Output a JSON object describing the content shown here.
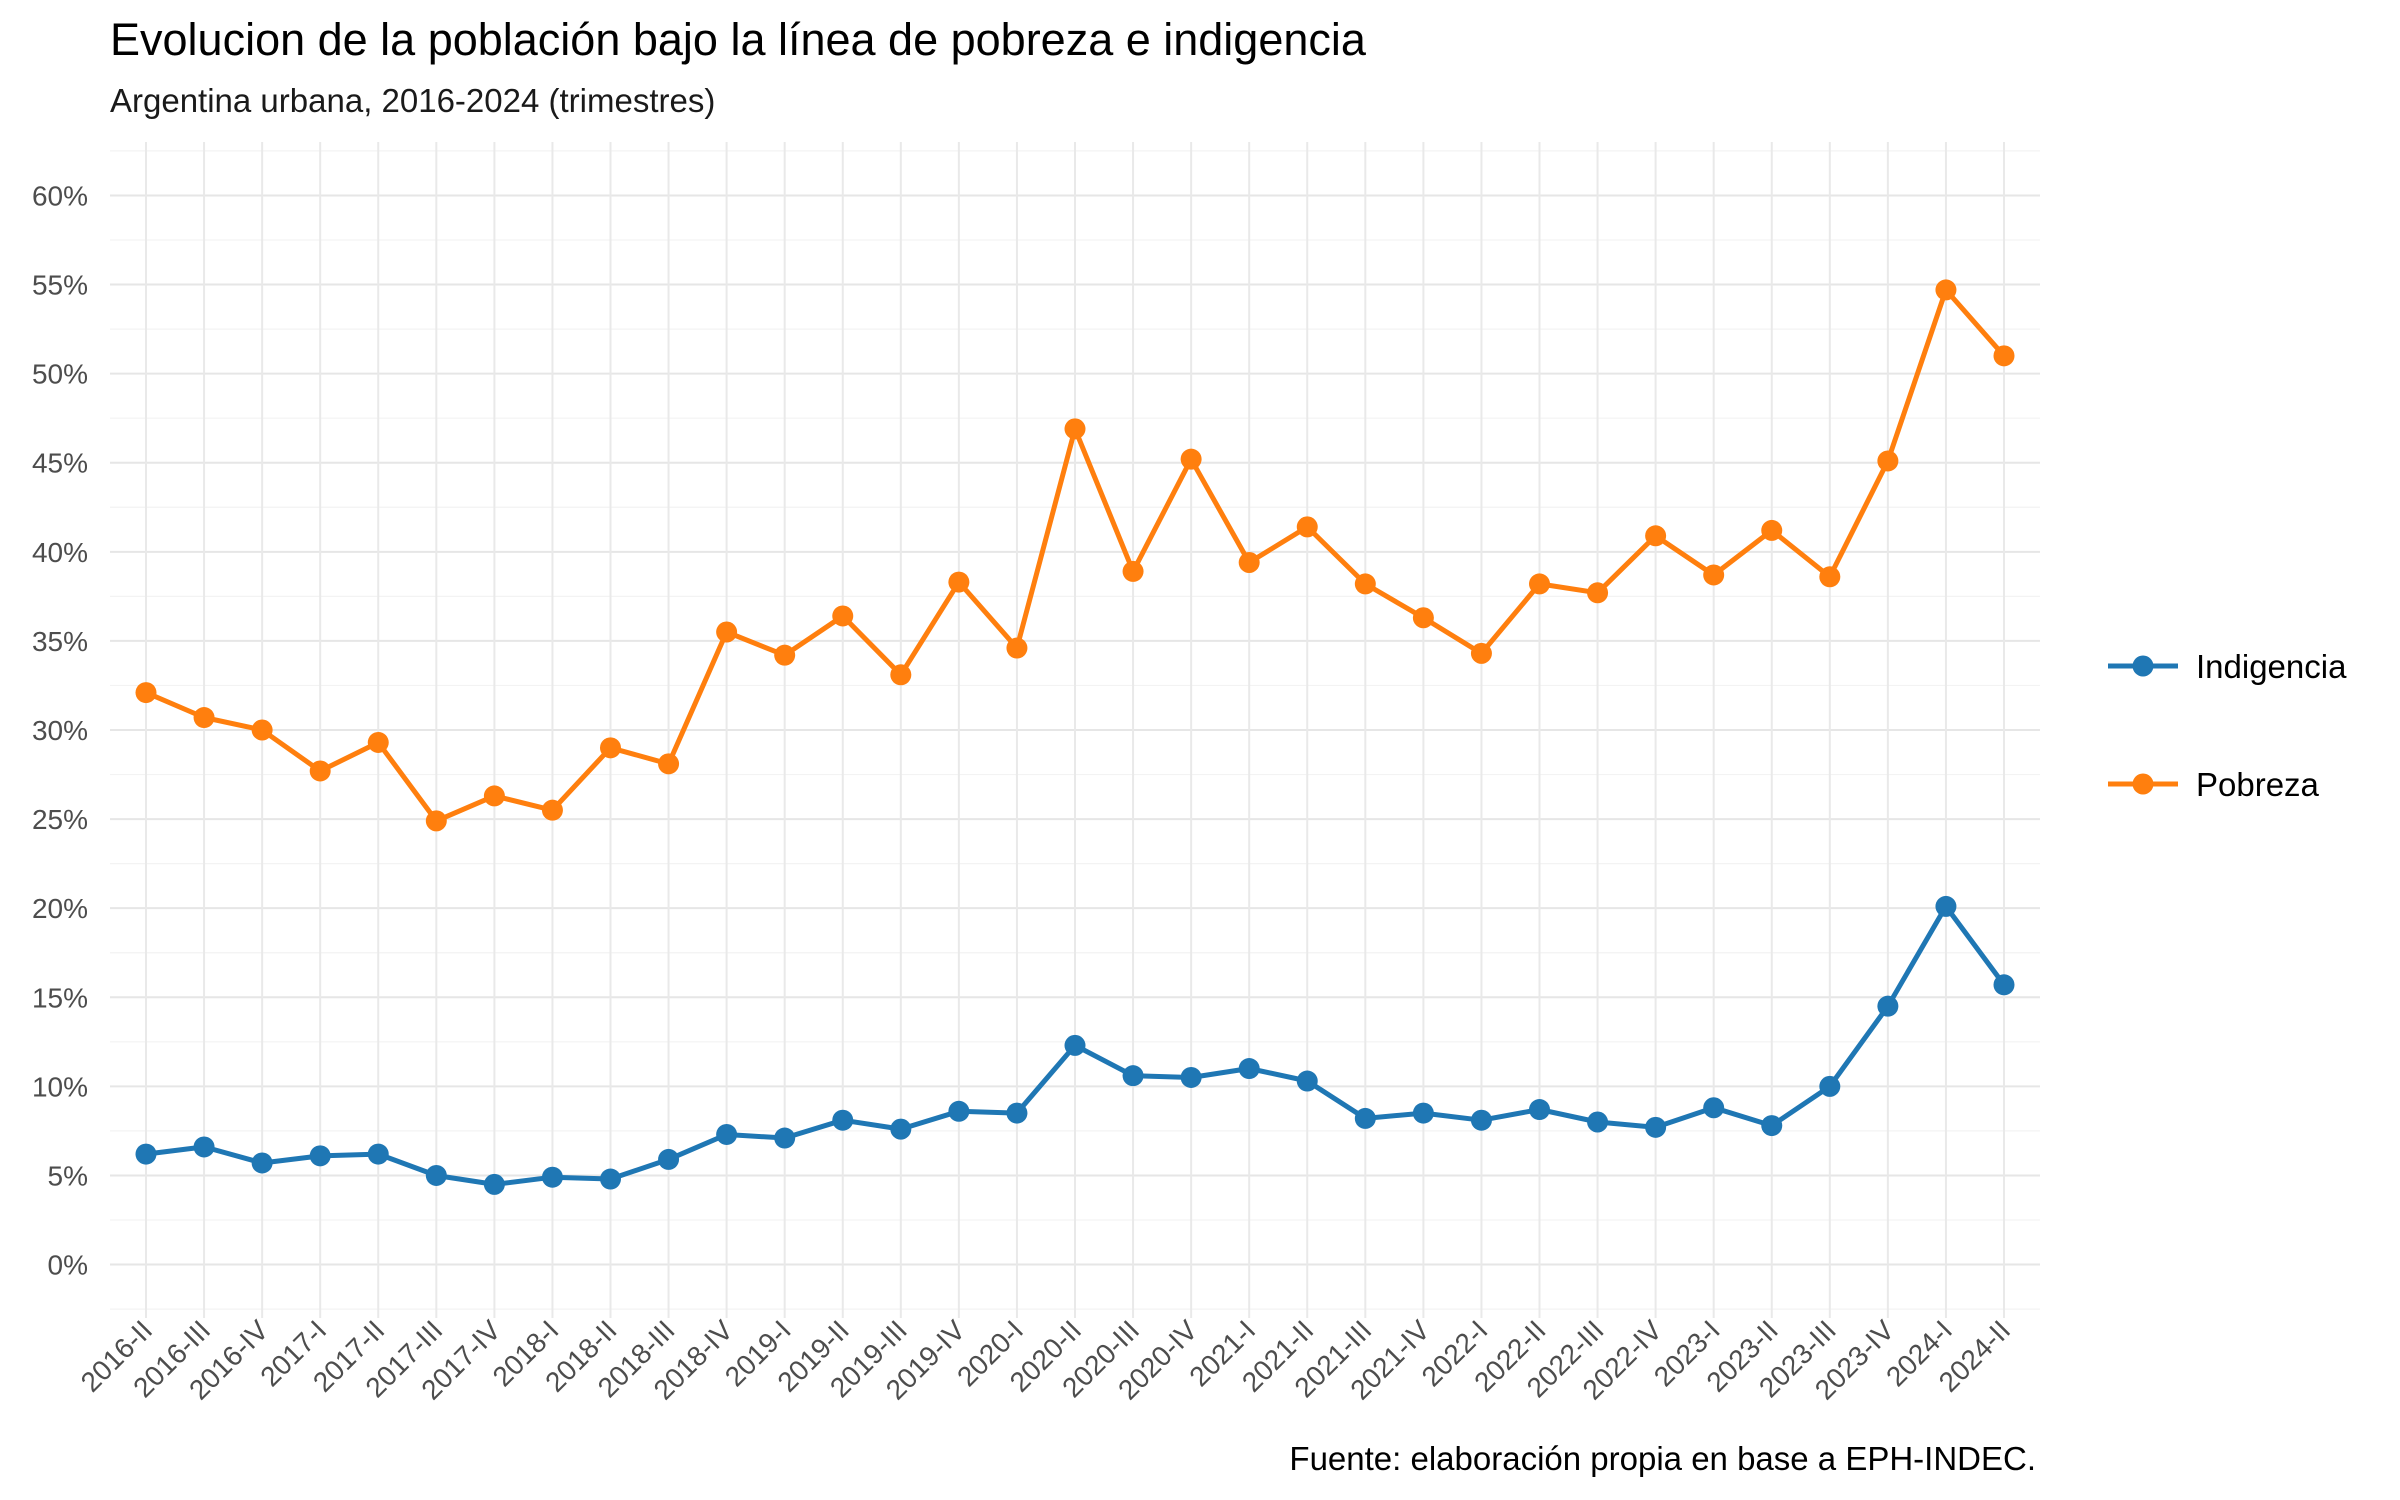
{
  "chart_data": {
    "type": "line",
    "title": "Evolucion de la población bajo la línea de pobreza e indigencia",
    "subtitle": "Argentina urbana, 2016-2024 (trimestres)",
    "caption": "Fuente: elaboración propia en base a EPH-INDEC.",
    "xlabel": "",
    "ylabel": "",
    "ylim": [
      -3,
      63
    ],
    "yticks": [
      0,
      5,
      10,
      15,
      20,
      25,
      30,
      35,
      40,
      45,
      50,
      55,
      60
    ],
    "ytick_labels": [
      "0%",
      "5%",
      "10%",
      "15%",
      "20%",
      "25%",
      "30%",
      "35%",
      "40%",
      "45%",
      "50%",
      "55%",
      "60%"
    ],
    "grid": true,
    "legend_position": "right",
    "categories": [
      "2016-II",
      "2016-III",
      "2016-IV",
      "2017-I",
      "2017-II",
      "2017-III",
      "2017-IV",
      "2018-I",
      "2018-II",
      "2018-III",
      "2018-IV",
      "2019-I",
      "2019-II",
      "2019-III",
      "2019-IV",
      "2020-I",
      "2020-II",
      "2020-III",
      "2020-IV",
      "2021-I",
      "2021-II",
      "2021-III",
      "2021-IV",
      "2022-I",
      "2022-II",
      "2022-III",
      "2022-IV",
      "2023-I",
      "2023-II",
      "2023-III",
      "2023-IV",
      "2024-I",
      "2024-II"
    ],
    "series": [
      {
        "name": "Indigencia",
        "color": "#1f77b4",
        "values": [
          6.2,
          6.6,
          5.7,
          6.1,
          6.2,
          5.0,
          4.5,
          4.9,
          4.8,
          5.9,
          7.3,
          7.1,
          8.1,
          7.6,
          8.6,
          8.5,
          12.3,
          10.6,
          10.5,
          11.0,
          10.3,
          8.2,
          8.5,
          8.1,
          8.7,
          8.0,
          7.7,
          8.8,
          7.8,
          10.0,
          14.5,
          20.1,
          15.7
        ]
      },
      {
        "name": "Pobreza",
        "color": "#ff7f0e",
        "values": [
          32.1,
          30.7,
          30.0,
          27.7,
          29.3,
          24.9,
          26.3,
          25.5,
          29.0,
          28.1,
          35.5,
          34.2,
          36.4,
          33.1,
          38.3,
          34.6,
          46.9,
          38.9,
          45.2,
          39.4,
          41.4,
          38.2,
          36.3,
          34.3,
          38.2,
          37.7,
          40.9,
          38.7,
          41.2,
          38.6,
          45.1,
          54.7,
          51.0
        ]
      }
    ]
  }
}
